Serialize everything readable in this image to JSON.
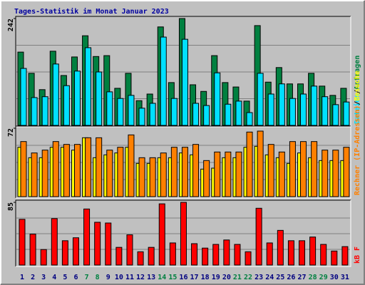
{
  "title": "Tages-Statistik im Monat Januar 2023",
  "separator": "/",
  "chart_data": [
    {
      "type": "bar",
      "ylim": [
        0,
        242
      ],
      "yticks": [
        242
      ],
      "grid": true,
      "series": [
        {
          "name": "Anfragen",
          "color": "#008040",
          "values": [
            166,
            118,
            81,
            168,
            113,
            155,
            203,
            156,
            158,
            84,
            118,
            56,
            71,
            223,
            97,
            242,
            92,
            77,
            158,
            97,
            87,
            55,
            226,
            98,
            131,
            94,
            94,
            118,
            89,
            68,
            84
          ]
        },
        {
          "name": "Dateien",
          "color": "#00e0ff",
          "values": [
            129,
            63,
            65,
            139,
            90,
            123,
            176,
            121,
            76,
            61,
            68,
            39,
            50,
            200,
            61,
            195,
            50,
            45,
            119,
            48,
            55,
            29,
            118,
            71,
            94,
            61,
            71,
            89,
            65,
            47,
            53
          ]
        }
      ]
    },
    {
      "type": "bar",
      "ylim": [
        0,
        72
      ],
      "yticks": [
        72
      ],
      "grid": true,
      "series": [
        {
          "name": "Besuche",
          "color": "#ffff00",
          "values": [
            52,
            41,
            41,
            52,
            52,
            49,
            62,
            41,
            44,
            46,
            52,
            35,
            35,
            41,
            41,
            46,
            44,
            29,
            30,
            41,
            41,
            52,
            53,
            44,
            41,
            35,
            46,
            41,
            38,
            38,
            38
          ]
        },
        {
          "name": "Rechner (IP-Adressen)",
          "color": "#ff8000",
          "values": [
            58,
            46,
            49,
            58,
            55,
            55,
            62,
            62,
            49,
            52,
            65,
            41,
            41,
            46,
            52,
            52,
            55,
            38,
            47,
            47,
            47,
            68,
            69,
            55,
            47,
            58,
            58,
            58,
            49,
            49,
            52
          ]
        }
      ]
    },
    {
      "type": "bar",
      "ylim": [
        0,
        85
      ],
      "yticks": [
        85
      ],
      "grid": true,
      "categories": [
        "1",
        "2",
        "3",
        "4",
        "5",
        "6",
        "7",
        "8",
        "9",
        "10",
        "11",
        "12",
        "13",
        "14",
        "15",
        "16",
        "17",
        "18",
        "19",
        "20",
        "21",
        "22",
        "23",
        "24",
        "25",
        "26",
        "27",
        "28",
        "29",
        "30",
        "31"
      ],
      "label_color": "#000080",
      "weekend_color": "#008040",
      "weekends": [
        7,
        8,
        14,
        15,
        21,
        22,
        28,
        29
      ],
      "series": [
        {
          "name": "kB F",
          "color": "#ff0000",
          "values": [
            62,
            42,
            21,
            63,
            33,
            37,
            76,
            58,
            57,
            24,
            41,
            18,
            24,
            83,
            30,
            85,
            29,
            23,
            28,
            34,
            28,
            18,
            77,
            30,
            47,
            33,
            33,
            38,
            28,
            19,
            25
          ]
        }
      ]
    }
  ]
}
